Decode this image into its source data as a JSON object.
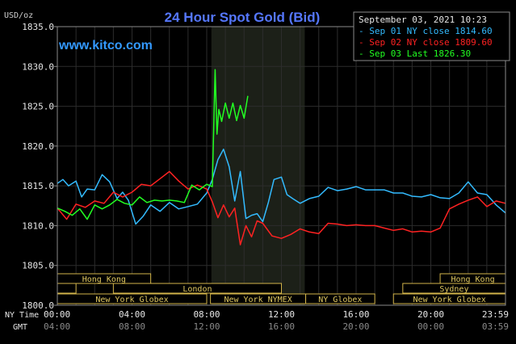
{
  "chart_data": {
    "type": "line",
    "title": "24 Hour Spot Gold (Bid)",
    "watermark": "www.kitco.com",
    "date_label": "September 03, 2021 10:23",
    "ylabel": "USD/oz",
    "ylim": [
      1800,
      1835
    ],
    "yticks": [
      "1835.0",
      "1830.0",
      "1825.0",
      "1820.0",
      "1815.0",
      "1810.0",
      "1805.0",
      "1800.0"
    ],
    "xlim": [
      0,
      24
    ],
    "xticks_ny": [
      "00:00",
      "04:00",
      "08:00",
      "12:00",
      "16:00",
      "20:00",
      "23:59"
    ],
    "xticks_gmt": [
      "04:00",
      "08:00",
      "12:00",
      "16:00",
      "20:00",
      "00:00",
      "03:59"
    ],
    "x_row_labels": {
      "ny": "NY Time",
      "gmt": "GMT"
    },
    "highlight_range": [
      8.25,
      13.25
    ],
    "background": "#000000",
    "plot_color": "#000000",
    "highlight_color": "#1c2018",
    "grid_color": "#2c2c2c",
    "sessions": [
      {
        "name": "Hong Kong",
        "start": 0,
        "end": 5,
        "row": 0
      },
      {
        "name": "Hong Kong",
        "start": 20.5,
        "end": 24,
        "row": 0
      },
      {
        "name": "",
        "start": 0,
        "end": 1,
        "row": 1
      },
      {
        "name": "London",
        "start": 3,
        "end": 12,
        "row": 1
      },
      {
        "name": "Sydney",
        "start": 18.5,
        "end": 24,
        "row": 1
      },
      {
        "name": "New York Globex",
        "start": 0,
        "end": 8,
        "row": 2
      },
      {
        "name": "New York NYMEX",
        "start": 8.2,
        "end": 13.3,
        "row": 2
      },
      {
        "name": "NY Globex",
        "start": 13.3,
        "end": 17,
        "row": 2
      },
      {
        "name": "New York Globex",
        "start": 18,
        "end": 24,
        "row": 2
      }
    ],
    "series": [
      {
        "name": "Sep 01 NY close 1814.60",
        "color": "#33bbff",
        "x": [
          0,
          0.3,
          0.6,
          1,
          1.3,
          1.6,
          2,
          2.4,
          2.8,
          3.2,
          3.5,
          3.8,
          4.2,
          4.6,
          5,
          5.5,
          6,
          6.5,
          7,
          7.5,
          8,
          8.3,
          8.6,
          8.9,
          9.2,
          9.5,
          9.8,
          10.1,
          10.4,
          10.7,
          11,
          11.3,
          11.6,
          12,
          12.3,
          12.6,
          13,
          13.5,
          14,
          14.5,
          15,
          15.5,
          16,
          16.5,
          17,
          17.5,
          18,
          18.5,
          19,
          19.5,
          20,
          20.5,
          21,
          21.5,
          22,
          22.5,
          23,
          23.5,
          24
        ],
        "values": [
          1815.3,
          1815.8,
          1815,
          1815.6,
          1813.6,
          1814.6,
          1814.5,
          1816.4,
          1815.5,
          1813.4,
          1814.2,
          1813.2,
          1810.2,
          1811.2,
          1812.6,
          1811.8,
          1812.9,
          1812.1,
          1812.4,
          1812.7,
          1814.1,
          1815.8,
          1818.3,
          1819.6,
          1817.4,
          1813.1,
          1816.8,
          1810.9,
          1811.3,
          1811.5,
          1810.5,
          1812.9,
          1815.8,
          1816.1,
          1813.9,
          1813.4,
          1812.8,
          1813.4,
          1813.7,
          1814.8,
          1814.4,
          1814.6,
          1814.9,
          1814.5,
          1814.5,
          1814.5,
          1814.1,
          1814.1,
          1813.7,
          1813.6,
          1813.9,
          1813.5,
          1813.4,
          1814.1,
          1815.5,
          1814.1,
          1813.9,
          1812.6,
          1811.6
        ]
      },
      {
        "name": "Sep 02 NY close 1809.60",
        "color": "#ff2222",
        "x": [
          0,
          0.5,
          1,
          1.5,
          2,
          2.5,
          3,
          3.5,
          4,
          4.5,
          5,
          5.5,
          6,
          6.5,
          7,
          7.5,
          8,
          8.3,
          8.6,
          8.9,
          9.2,
          9.5,
          9.8,
          10.1,
          10.4,
          10.7,
          11,
          11.5,
          12,
          12.5,
          13,
          13.5,
          14,
          14.5,
          15,
          15.5,
          16,
          16.5,
          17,
          17.5,
          18,
          18.5,
          19,
          19.5,
          20,
          20.5,
          21,
          21.5,
          22,
          22.5,
          23,
          23.5,
          24
        ],
        "values": [
          1812.2,
          1810.8,
          1812.7,
          1812.3,
          1813.1,
          1812.8,
          1814.2,
          1813.6,
          1814.2,
          1815.2,
          1815,
          1815.9,
          1816.8,
          1815.6,
          1814.6,
          1815.1,
          1814.6,
          1813,
          1811,
          1812.6,
          1811.1,
          1812.2,
          1807.6,
          1810,
          1808.6,
          1810.6,
          1810.3,
          1808.7,
          1808.4,
          1808.9,
          1809.6,
          1809.2,
          1809,
          1810.3,
          1810.2,
          1810,
          1810.1,
          1810,
          1810,
          1809.7,
          1809.4,
          1809.6,
          1809.2,
          1809.3,
          1809.2,
          1809.7,
          1812.1,
          1812.7,
          1813.2,
          1813.6,
          1812.4,
          1813.1,
          1812.8
        ]
      },
      {
        "name": "Sep 03 Last 1826.30",
        "color": "#22ff22",
        "x": [
          0,
          0.4,
          0.8,
          1.2,
          1.6,
          2,
          2.4,
          2.8,
          3.2,
          3.6,
          4,
          4.4,
          4.8,
          5.2,
          5.6,
          6,
          6.4,
          6.8,
          7.2,
          7.6,
          8,
          8.3,
          8.45,
          8.55,
          8.65,
          8.8,
          9,
          9.2,
          9.4,
          9.6,
          9.8,
          10,
          10.2
        ],
        "values": [
          1812.2,
          1811.8,
          1811.3,
          1812.1,
          1810.8,
          1812.6,
          1812.1,
          1812.6,
          1813.3,
          1812.8,
          1812.6,
          1813.6,
          1812.9,
          1813.2,
          1813.1,
          1813.2,
          1813.1,
          1812.9,
          1815.1,
          1814.5,
          1815.2,
          1814.9,
          1829.6,
          1821.5,
          1824.6,
          1823.1,
          1825.4,
          1823.5,
          1825.4,
          1823.2,
          1825.1,
          1823.5,
          1826.3
        ]
      }
    ]
  }
}
